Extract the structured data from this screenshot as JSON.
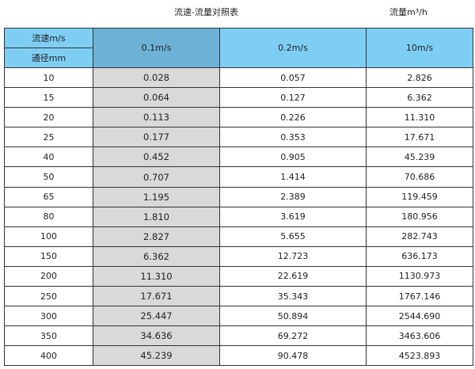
{
  "title": "流速-流量对照表",
  "unit": "流量m³/h",
  "header": {
    "velocity_label": "流速m/s",
    "diameter_label": "通径mm",
    "columns": [
      "0.1m/s",
      "0.2m/s",
      "10m/s"
    ]
  },
  "colors": {
    "header": "#7ecef4",
    "header_highlight": "#6cb2d6",
    "highlight_column": "#d9d9d9"
  },
  "rows": [
    [
      "10",
      "0.028",
      "0.057",
      "2.826"
    ],
    [
      "15",
      "0.064",
      "0.127",
      "6.362"
    ],
    [
      "20",
      "0.113",
      "0.226",
      "11.310"
    ],
    [
      "25",
      "0.177",
      "0.353",
      "17.671"
    ],
    [
      "40",
      "0.452",
      "0.905",
      "45.239"
    ],
    [
      "50",
      "0.707",
      "1.414",
      "70.686"
    ],
    [
      "65",
      "1.195",
      "2.389",
      "119.459"
    ],
    [
      "80",
      "1.810",
      "3.619",
      "180.956"
    ],
    [
      "100",
      "2.827",
      "5.655",
      "282.743"
    ],
    [
      "150",
      "6.362",
      "12.723",
      "636.173"
    ],
    [
      "200",
      "11.310",
      "22.619",
      "1130.973"
    ],
    [
      "250",
      "17.671",
      "35.343",
      "1767.146"
    ],
    [
      "300",
      "25.447",
      "50.894",
      "2544.690"
    ],
    [
      "350",
      "34.636",
      "69.272",
      "3463.606"
    ],
    [
      "400",
      "45.239",
      "90.478",
      "4523.893"
    ]
  ]
}
